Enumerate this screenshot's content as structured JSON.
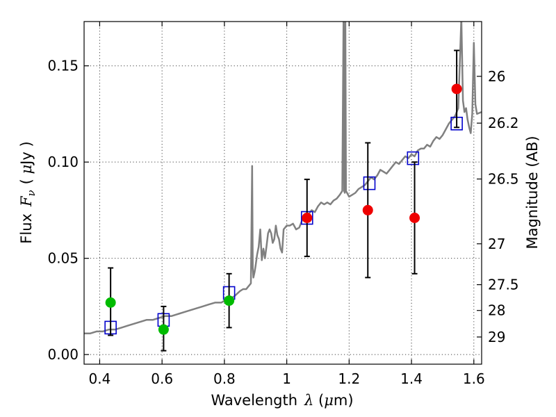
{
  "chart_data": {
    "type": "scatter",
    "xlabel": {
      "main": "Wavelength",
      "symbol": "λ",
      "unit_open": " (",
      "unit_mu": "μ",
      "unit_rest": "m)"
    },
    "ylabel": {
      "main": "Flux",
      "symbol": "F",
      "subscript": "ν",
      "unit_open": "( ",
      "unit_mu": "μ",
      "unit_rest": "Jy )"
    },
    "y2label": "Magnitude (AB)",
    "xlim": [
      0.35,
      1.625
    ],
    "ylim": [
      -0.005,
      0.173
    ],
    "x_ticks": [
      {
        "value": 0.4,
        "label": "0.4"
      },
      {
        "value": 0.6,
        "label": "0.6"
      },
      {
        "value": 0.8,
        "label": "0.8"
      },
      {
        "value": 1.0,
        "label": "1"
      },
      {
        "value": 1.2,
        "label": "1.2"
      },
      {
        "value": 1.4,
        "label": "1.4"
      },
      {
        "value": 1.6,
        "label": "1.6"
      }
    ],
    "y_ticks": [
      {
        "value": 0.0,
        "label": "0.00"
      },
      {
        "value": 0.05,
        "label": "0.05"
      },
      {
        "value": 0.1,
        "label": "0.10"
      },
      {
        "value": 0.15,
        "label": "0.15"
      }
    ],
    "mag_ticks": [
      {
        "value": 26,
        "label": "26"
      },
      {
        "value": 26.2,
        "label": "26.2"
      },
      {
        "value": 26.5,
        "label": "26.5"
      },
      {
        "value": 27,
        "label": "27"
      },
      {
        "value": 27.5,
        "label": "27.5"
      },
      {
        "value": 28,
        "label": "28"
      },
      {
        "value": 29,
        "label": "29"
      }
    ],
    "grid": true,
    "colors": {
      "template": "#808080",
      "observed_optical": "#00bb00",
      "observed_nir": "#ee0000",
      "model": "#0000cc",
      "errorbar": "#000000"
    },
    "template_spectrum": {
      "x": [
        0.35,
        0.37,
        0.39,
        0.41,
        0.43,
        0.45,
        0.47,
        0.49,
        0.51,
        0.53,
        0.55,
        0.57,
        0.59,
        0.61,
        0.63,
        0.65,
        0.67,
        0.69,
        0.71,
        0.73,
        0.75,
        0.77,
        0.79,
        0.81,
        0.83,
        0.85,
        0.86,
        0.87,
        0.875,
        0.88,
        0.885,
        0.889,
        0.891,
        0.893,
        0.897,
        0.9,
        0.905,
        0.91,
        0.915,
        0.92,
        0.925,
        0.93,
        0.935,
        0.94,
        0.945,
        0.95,
        0.955,
        0.96,
        0.965,
        0.97,
        0.975,
        0.98,
        0.985,
        0.99,
        1.0,
        1.01,
        1.02,
        1.03,
        1.04,
        1.05,
        1.06,
        1.07,
        1.08,
        1.09,
        1.1,
        1.11,
        1.12,
        1.13,
        1.14,
        1.15,
        1.16,
        1.17,
        1.178,
        1.182,
        1.184,
        1.186,
        1.188,
        1.19,
        1.2,
        1.21,
        1.22,
        1.23,
        1.24,
        1.25,
        1.26,
        1.27,
        1.28,
        1.29,
        1.3,
        1.31,
        1.32,
        1.33,
        1.34,
        1.35,
        1.36,
        1.37,
        1.38,
        1.39,
        1.4,
        1.41,
        1.42,
        1.43,
        1.44,
        1.45,
        1.46,
        1.47,
        1.48,
        1.49,
        1.5,
        1.51,
        1.52,
        1.53,
        1.54,
        1.55,
        1.56,
        1.565,
        1.57,
        1.575,
        1.58,
        1.585,
        1.59,
        1.595,
        1.6,
        1.605,
        1.61,
        1.625
      ],
      "y": [
        0.011,
        0.011,
        0.012,
        0.012,
        0.013,
        0.013,
        0.014,
        0.015,
        0.016,
        0.017,
        0.018,
        0.018,
        0.019,
        0.02,
        0.02,
        0.021,
        0.022,
        0.023,
        0.024,
        0.025,
        0.026,
        0.027,
        0.027,
        0.029,
        0.03,
        0.033,
        0.034,
        0.034,
        0.035,
        0.036,
        0.037,
        0.098,
        0.045,
        0.04,
        0.043,
        0.046,
        0.052,
        0.056,
        0.065,
        0.049,
        0.055,
        0.05,
        0.056,
        0.063,
        0.065,
        0.063,
        0.058,
        0.06,
        0.067,
        0.062,
        0.06,
        0.055,
        0.053,
        0.065,
        0.067,
        0.067,
        0.068,
        0.065,
        0.066,
        0.07,
        0.072,
        0.073,
        0.075,
        0.074,
        0.077,
        0.079,
        0.078,
        0.079,
        0.078,
        0.08,
        0.081,
        0.083,
        0.085,
        0.175,
        0.085,
        0.084,
        0.175,
        0.085,
        0.082,
        0.083,
        0.084,
        0.086,
        0.087,
        0.088,
        0.09,
        0.092,
        0.091,
        0.093,
        0.096,
        0.095,
        0.094,
        0.096,
        0.098,
        0.1,
        0.099,
        0.101,
        0.103,
        0.102,
        0.104,
        0.103,
        0.106,
        0.107,
        0.107,
        0.109,
        0.108,
        0.111,
        0.113,
        0.112,
        0.114,
        0.117,
        0.12,
        0.122,
        0.124,
        0.128,
        0.175,
        0.132,
        0.126,
        0.128,
        0.122,
        0.118,
        0.115,
        0.125,
        0.162,
        0.13,
        0.125,
        0.126
      ]
    },
    "observed_optical": [
      {
        "x": 0.435,
        "y": 0.027,
        "err_low": 0.01,
        "err_high": 0.045
      },
      {
        "x": 0.605,
        "y": 0.013,
        "err_low": 0.002,
        "err_high": 0.025
      },
      {
        "x": 0.815,
        "y": 0.028,
        "err_low": 0.014,
        "err_high": 0.042
      }
    ],
    "observed_nir": [
      {
        "x": 1.065,
        "y": 0.071,
        "err_low": 0.051,
        "err_high": 0.091
      },
      {
        "x": 1.26,
        "y": 0.075,
        "err_low": 0.04,
        "err_high": 0.11
      },
      {
        "x": 1.41,
        "y": 0.071,
        "err_low": 0.042,
        "err_high": 0.1
      },
      {
        "x": 1.545,
        "y": 0.138,
        "err_low": 0.118,
        "err_high": 0.158
      }
    ],
    "model_photometry": [
      {
        "x": 0.435,
        "y": 0.014
      },
      {
        "x": 0.605,
        "y": 0.018
      },
      {
        "x": 0.815,
        "y": 0.032
      },
      {
        "x": 1.065,
        "y": 0.071
      },
      {
        "x": 1.265,
        "y": 0.089
      },
      {
        "x": 1.405,
        "y": 0.102
      },
      {
        "x": 1.545,
        "y": 0.12
      }
    ]
  }
}
